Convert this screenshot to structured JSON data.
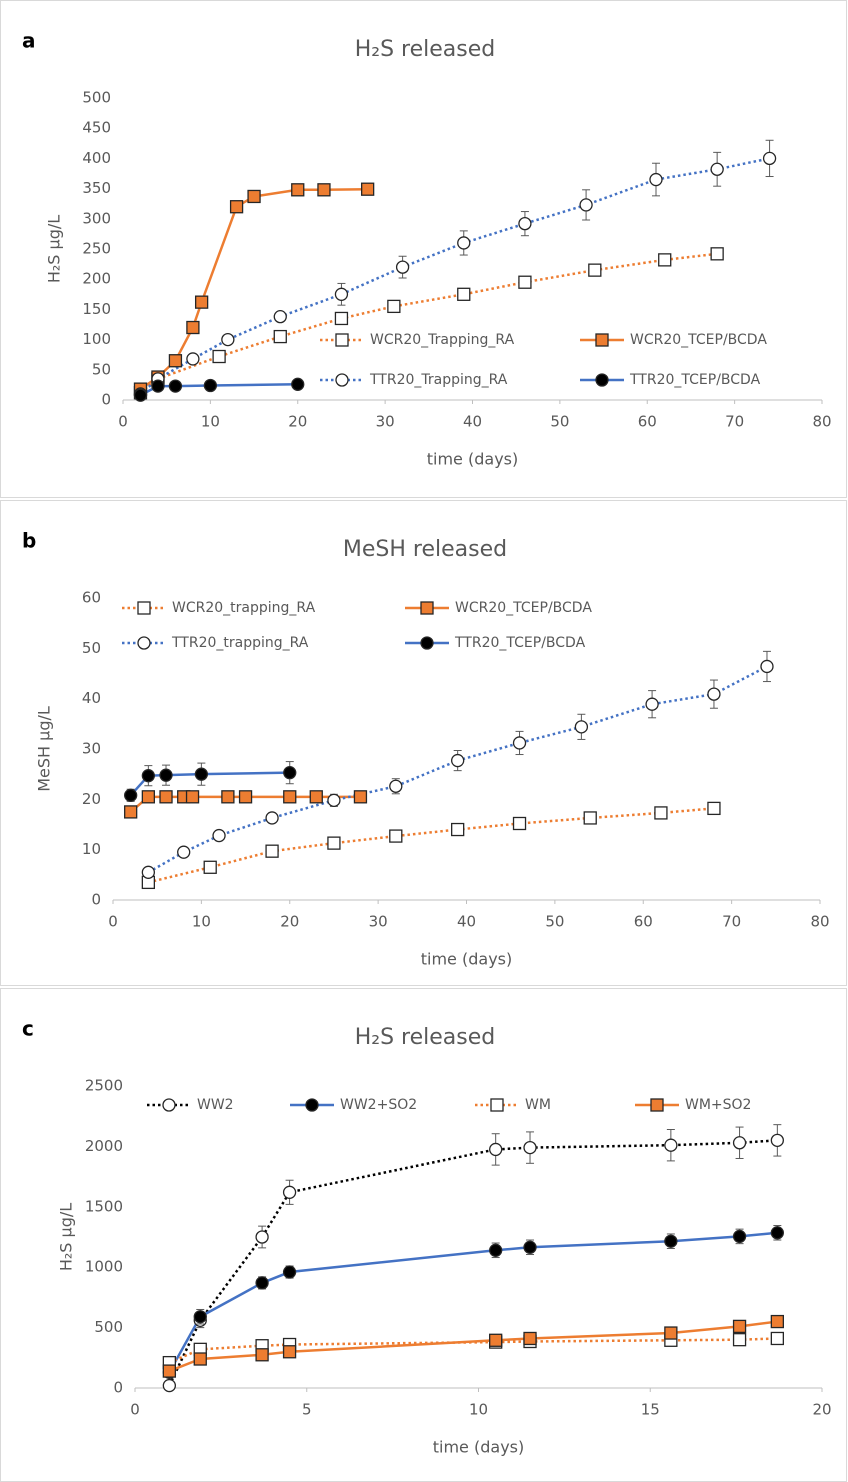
{
  "chart_data": [
    {
      "type": "line",
      "panel_label": "a",
      "title": "H₂S released",
      "x_label": "time (days)",
      "y_label": "H₂S µg/L",
      "xlim": [
        0,
        80
      ],
      "xticks": [
        0,
        10,
        20,
        30,
        40,
        50,
        60,
        70,
        80
      ],
      "ylim": [
        0,
        500
      ],
      "yticks": [
        0,
        50,
        100,
        150,
        200,
        250,
        300,
        350,
        400,
        450,
        500
      ],
      "grid": false,
      "legend": "lower right",
      "series": [
        {
          "name": "WCR20_Trapping_RA",
          "color": "#ed7d31",
          "line_style": "dotted",
          "marker": "square",
          "marker_color": "#ffffff",
          "x": [
            2,
            4,
            11,
            18,
            25,
            31,
            39,
            46,
            54,
            62,
            68
          ],
          "values": [
            12,
            35,
            72,
            105,
            135,
            155,
            175,
            195,
            215,
            232,
            242
          ],
          "errors": [
            3,
            4,
            5,
            6,
            8,
            8,
            8,
            8,
            8,
            8,
            8
          ]
        },
        {
          "name": "WCR20_TCEP/BCDA",
          "color": "#ed7d31",
          "line_style": "solid",
          "marker": "square",
          "marker_color": "#ed7d31",
          "x": [
            2,
            4,
            6,
            8,
            9,
            13,
            15,
            20,
            23,
            28
          ],
          "values": [
            18,
            38,
            65,
            120,
            162,
            320,
            337,
            348,
            348,
            349
          ]
        },
        {
          "name": "TTR20_Trapping_RA",
          "color": "#4472c4",
          "line_style": "dotted",
          "marker": "circle",
          "marker_color": "#ffffff",
          "x": [
            2,
            4,
            8,
            12,
            18,
            25,
            32,
            39,
            46,
            53,
            61,
            68,
            74
          ],
          "values": [
            10,
            35,
            68,
            100,
            138,
            175,
            220,
            260,
            292,
            323,
            365,
            382,
            400
          ],
          "errors": [
            3,
            4,
            5,
            6,
            7,
            18,
            18,
            20,
            20,
            25,
            27,
            28,
            30
          ]
        },
        {
          "name": "TTR20_TCEP/BCDA",
          "color": "#4472c4",
          "line_style": "solid",
          "marker": "circle",
          "marker_color": "#000000",
          "x": [
            2,
            4,
            6,
            10,
            20
          ],
          "values": [
            8,
            23,
            23,
            24,
            26
          ]
        }
      ]
    },
    {
      "type": "line",
      "panel_label": "b",
      "title": "MeSH released",
      "x_label": "time (days)",
      "y_label": "MeSH µg/L",
      "xlim": [
        0,
        80
      ],
      "xticks": [
        0,
        10,
        20,
        30,
        40,
        50,
        60,
        70,
        80
      ],
      "ylim": [
        0,
        60
      ],
      "yticks": [
        0,
        10,
        20,
        30,
        40,
        50,
        60
      ],
      "grid": false,
      "legend": "top left",
      "series": [
        {
          "name": "WCR20_trapping_RA",
          "color": "#ed7d31",
          "line_style": "dotted",
          "marker": "square",
          "marker_color": "#ffffff",
          "x": [
            4,
            11,
            18,
            25,
            32,
            39,
            46,
            54,
            62,
            68
          ],
          "values": [
            3.5,
            6.5,
            9.7,
            11.3,
            12.7,
            14,
            15.2,
            16.3,
            17.3,
            18.2
          ]
        },
        {
          "name": "WCR20_TCEP/BCDA",
          "color": "#ed7d31",
          "line_style": "solid",
          "marker": "square",
          "marker_color": "#ed7d31",
          "x": [
            2,
            4,
            6,
            8,
            9,
            13,
            15,
            20,
            23,
            28
          ],
          "values": [
            17.5,
            20.5,
            20.5,
            20.5,
            20.5,
            20.5,
            20.5,
            20.5,
            20.5,
            20.5
          ]
        },
        {
          "name": "TTR20_trapping_RA",
          "color": "#4472c4",
          "line_style": "dotted",
          "marker": "circle",
          "marker_color": "#ffffff",
          "x": [
            4,
            8,
            12,
            18,
            25,
            32,
            39,
            46,
            53,
            61,
            68,
            74
          ],
          "values": [
            5.5,
            9.5,
            12.8,
            16.3,
            19.8,
            22.6,
            27.7,
            31.2,
            34.4,
            38.9,
            40.9,
            46.4
          ],
          "errors": [
            0.8,
            0.8,
            1,
            1,
            1.2,
            1.5,
            2,
            2.3,
            2.5,
            2.7,
            2.8,
            3
          ]
        },
        {
          "name": "TTR20_TCEP/BCDA",
          "color": "#4472c4",
          "line_style": "solid",
          "marker": "circle",
          "marker_color": "#000000",
          "x": [
            2,
            4,
            6,
            10,
            20
          ],
          "values": [
            20.8,
            24.7,
            24.8,
            25,
            25.3
          ],
          "errors": [
            1.2,
            2,
            2,
            2.2,
            2.2
          ]
        }
      ]
    },
    {
      "type": "line",
      "panel_label": "c",
      "title": "H₂S released",
      "x_label": "time (days)",
      "y_label": "H₂S µg/L",
      "xlim": [
        0,
        20
      ],
      "xticks": [
        0,
        5,
        10,
        15,
        20
      ],
      "ylim": [
        0,
        2500
      ],
      "yticks": [
        0,
        500,
        1000,
        1500,
        2000,
        2500
      ],
      "grid": false,
      "legend": "top",
      "series": [
        {
          "name": "WW2",
          "color": "#000000",
          "line_style": "dotted",
          "marker": "circle",
          "marker_color": "#ffffff",
          "x": [
            1,
            1.9,
            3.7,
            4.5,
            10.5,
            11.5,
            15.6,
            17.6,
            18.7
          ],
          "values": [
            20,
            560,
            1250,
            1620,
            1975,
            1990,
            2010,
            2030,
            2050
          ],
          "errors": [
            20,
            60,
            90,
            100,
            130,
            130,
            130,
            130,
            130
          ]
        },
        {
          "name": "WW2+SO2",
          "color": "#4472c4",
          "line_style": "solid",
          "marker": "circle",
          "marker_color": "#000000",
          "x": [
            1,
            1.9,
            3.7,
            4.5,
            10.5,
            11.5,
            15.6,
            17.6,
            18.7
          ],
          "values": [
            130,
            590,
            870,
            960,
            1140,
            1165,
            1215,
            1255,
            1285
          ],
          "errors": [
            40,
            60,
            50,
            50,
            60,
            60,
            60,
            60,
            60
          ]
        },
        {
          "name": "WM",
          "color": "#ed7d31",
          "line_style": "dotted",
          "marker": "square",
          "marker_color": "#ffffff",
          "x": [
            1,
            1.9,
            3.7,
            4.5,
            10.5,
            11.5,
            15.6,
            17.6,
            18.7
          ],
          "values": [
            210,
            320,
            350,
            360,
            380,
            385,
            395,
            400,
            410
          ],
          "errors": [
            30,
            30,
            25,
            25,
            25,
            25,
            25,
            25,
            25
          ]
        },
        {
          "name": "WM+SO2",
          "color": "#ed7d31",
          "line_style": "solid",
          "marker": "square",
          "marker_color": "#ed7d31",
          "x": [
            1,
            1.9,
            3.7,
            4.5,
            10.5,
            11.5,
            15.6,
            17.6,
            18.7
          ],
          "values": [
            140,
            240,
            275,
            300,
            395,
            410,
            455,
            510,
            550
          ],
          "errors": [
            30,
            30,
            30,
            30,
            30,
            30,
            30,
            30,
            30
          ]
        }
      ]
    }
  ]
}
